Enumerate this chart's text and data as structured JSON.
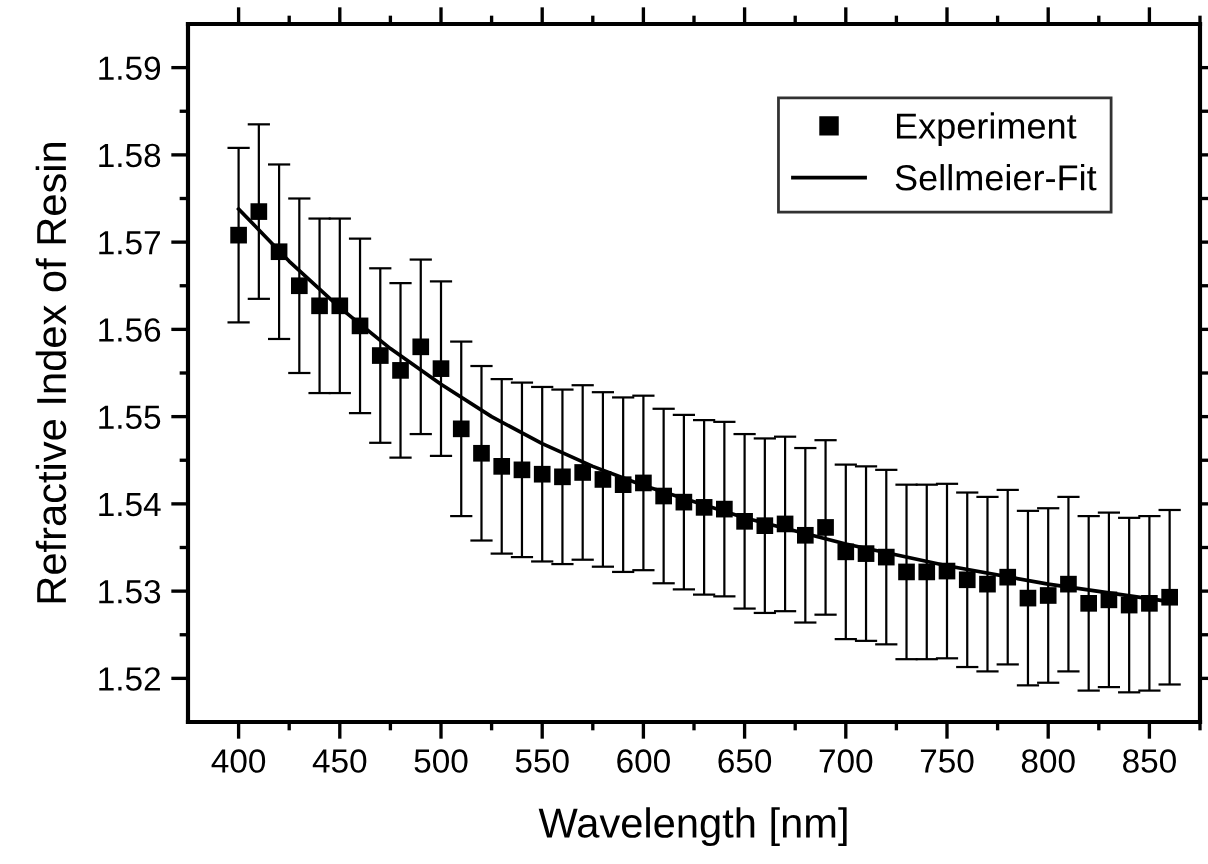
{
  "chart_data": {
    "type": "scatter",
    "xlabel": "Wavelength [nm]",
    "ylabel": "Refractive Index of Resin",
    "xlim": [
      375,
      875
    ],
    "xticks": [
      400,
      {
        "value": 425,
        "label": null
      },
      450,
      {
        "value": 475,
        "label": null
      },
      500,
      {
        "value": 525,
        "label": null
      },
      550,
      {
        "value": 575,
        "label": null
      },
      600,
      {
        "value": 625,
        "label": null
      },
      650,
      {
        "value": 675,
        "label": null
      },
      700,
      {
        "value": 725,
        "label": null
      },
      750,
      {
        "value": 775,
        "label": null
      },
      800,
      {
        "value": 825,
        "label": null
      },
      850,
      {
        "value": 875,
        "label": null
      }
    ],
    "ylim": [
      1.515,
      1.595
    ],
    "yticks": [
      {
        "value": 1.52,
        "label": "1.52"
      },
      {
        "value": 1.525,
        "label": null
      },
      {
        "value": 1.53,
        "label": "1.53"
      },
      {
        "value": 1.535,
        "label": null
      },
      {
        "value": 1.54,
        "label": "1.54"
      },
      {
        "value": 1.545,
        "label": null
      },
      {
        "value": 1.55,
        "label": "1.55"
      },
      {
        "value": 1.555,
        "label": null
      },
      {
        "value": 1.56,
        "label": "1.56"
      },
      {
        "value": 1.565,
        "label": null
      },
      {
        "value": 1.57,
        "label": "1.57"
      },
      {
        "value": 1.575,
        "label": null
      },
      {
        "value": 1.58,
        "label": "1.58"
      },
      {
        "value": 1.585,
        "label": null
      },
      {
        "value": 1.59,
        "label": "1.59"
      }
    ],
    "grid": false,
    "legend": "top right",
    "series": [
      {
        "name": "Experiment",
        "marker": "square",
        "color": "#000000",
        "x": [
          400,
          410,
          420,
          430,
          440,
          450,
          460,
          470,
          480,
          490,
          500,
          510,
          520,
          530,
          540,
          550,
          560,
          570,
          580,
          590,
          600,
          610,
          620,
          630,
          640,
          650,
          660,
          670,
          680,
          690,
          700,
          710,
          720,
          730,
          740,
          750,
          760,
          770,
          780,
          790,
          800,
          810,
          820,
          830,
          840,
          850,
          860
        ],
        "values": [
          1.5708,
          1.5735,
          1.5689,
          1.565,
          1.5627,
          1.5627,
          1.5604,
          1.557,
          1.5553,
          1.558,
          1.5555,
          1.5486,
          1.5458,
          1.5443,
          1.5439,
          1.5434,
          1.5431,
          1.5436,
          1.5428,
          1.5422,
          1.5424,
          1.5409,
          1.5402,
          1.5396,
          1.5394,
          1.538,
          1.5375,
          1.5377,
          1.5364,
          1.5373,
          1.5345,
          1.5343,
          1.5339,
          1.5322,
          1.5322,
          1.5323,
          1.5313,
          1.5308,
          1.5316,
          1.5292,
          1.5295,
          1.5308,
          1.5286,
          1.529,
          1.5284,
          1.5286,
          1.5293
        ],
        "errors": [
          0.01,
          0.01,
          0.01,
          0.01,
          0.01,
          0.01,
          0.01,
          0.01,
          0.01,
          0.01,
          0.01,
          0.01,
          0.01,
          0.01,
          0.01,
          0.01,
          0.01,
          0.01,
          0.01,
          0.01,
          0.01,
          0.01,
          0.01,
          0.01,
          0.01,
          0.01,
          0.01,
          0.01,
          0.01,
          0.01,
          0.01,
          0.01,
          0.01,
          0.01,
          0.01,
          0.01,
          0.01,
          0.01,
          0.01,
          0.01,
          0.01,
          0.01,
          0.01,
          0.01,
          0.01,
          0.01,
          0.01
        ]
      },
      {
        "name": "Sellmeier-Fit",
        "type": "line",
        "marker": "none",
        "line_style": "solid",
        "color": "#000000",
        "x": [
          400,
          425,
          450,
          475,
          500,
          525,
          550,
          575,
          600,
          650,
          700,
          750,
          800,
          860
        ],
        "values": [
          1.5738,
          1.5678,
          1.5625,
          1.5578,
          1.5537,
          1.55,
          1.5469,
          1.5443,
          1.5421,
          1.5384,
          1.5354,
          1.5329,
          1.5308,
          1.5288
        ]
      }
    ]
  }
}
